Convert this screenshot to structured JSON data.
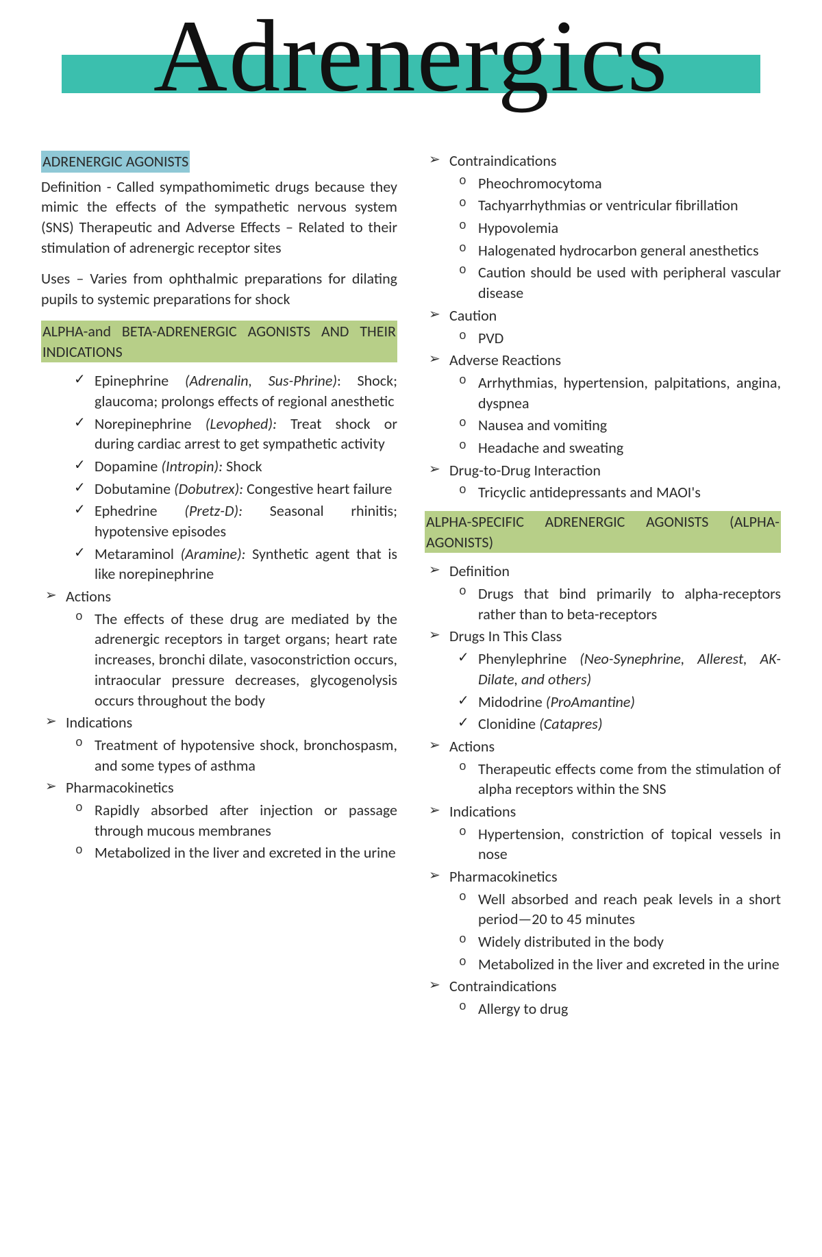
{
  "title": "Adrenergics",
  "colors": {
    "title_bar": "#3bbfae",
    "highlight_blue": "#8fc8d6",
    "highlight_green": "#b7cf88",
    "text": "#2b2b2b",
    "background": "#ffffff"
  },
  "left": {
    "heading_agonists": "ADRENERGIC AGONISTS",
    "definition": "Definition - Called sympathomimetic drugs because they mimic the effects of the sympathetic nervous system (SNS) Therapeutic and Adverse Effects – Related to their stimulation of adrenergic receptor sites",
    "uses": "Uses – Varies from ophthalmic preparations for dilating pupils to systemic preparations for shock",
    "heading_alpha_beta": "ALPHA-and BETA-ADRENERGIC AGONISTS AND THEIR INDICATIONS",
    "drugs": [
      {
        "name": "Epinephrine",
        "brand": "(Adrenalin, Sus-Phrine)",
        "rest": ": Shock; glaucoma; prolongs effects of regional anesthetic"
      },
      {
        "name": "Norepinephrine",
        "brand": "(Levophed):",
        "rest": " Treat shock or during cardiac arrest to get sympathetic activity"
      },
      {
        "name": "Dopamine",
        "brand": "(Intropin):",
        "rest": " Shock"
      },
      {
        "name": "Dobutamine",
        "brand": "(Dobutrex):",
        "rest": " Congestive heart failure"
      },
      {
        "name": "Ephedrine",
        "brand": "(Pretz-D):",
        "rest": " Seasonal rhinitis; hypotensive episodes"
      },
      {
        "name": "Metaraminol",
        "brand": "(Aramine):",
        "rest": " Synthetic agent that is like norepinephrine"
      }
    ],
    "actions_label": "Actions",
    "actions_item": "The effects of these drug are mediated by the adrenergic receptors in target organs; heart rate increases, bronchi dilate, vasoconstriction occurs, intraocular pressure decreases, glycogenolysis occurs throughout the body",
    "indications_label": "Indications",
    "indications_item": "Treatment of hypotensive shock, bronchospasm, and some types of asthma",
    "pharma_label": "Pharmacokinetics",
    "pharma_items": [
      "Rapidly absorbed after injection or passage through mucous membranes",
      "Metabolized in the liver and excreted in the urine"
    ]
  },
  "right": {
    "contra_label": "Contraindications",
    "contra_items": [
      "Pheochromocytoma",
      "Tachyarrhythmias or ventricular fibrillation",
      "Hypovolemia",
      "Halogenated hydrocarbon general anesthetics",
      "Caution should be used with peripheral vascular disease"
    ],
    "caution_label": "Caution",
    "caution_item": "PVD",
    "adverse_label": "Adverse Reactions",
    "adverse_items": [
      "Arrhythmias, hypertension, palpitations, angina, dyspnea",
      "Nausea and vomiting",
      "Headache and sweating"
    ],
    "ddi_label": "Drug-to-Drug Interaction",
    "ddi_item": "Tricyclic antidepressants and MAOI's",
    "heading_alpha_spec": "ALPHA-SPECIFIC ADRENERGIC AGONISTS (ALPHA-AGONISTS)",
    "def_label": "Definition",
    "def_item": "Drugs that bind primarily to alpha-receptors rather than to beta-receptors",
    "drugs_label": "Drugs In This Class",
    "alpha_drugs": [
      {
        "name": "Phenylephrine",
        "brand": "(Neo-Synephrine, Allerest, AK-Dilate, and others)"
      },
      {
        "name": "Midodrine",
        "brand": "(ProAmantine)"
      },
      {
        "name": "Clonidine",
        "brand": "(Catapres)"
      }
    ],
    "actions2_label": "Actions",
    "actions2_item": "Therapeutic effects come from the stimulation of alpha receptors within the SNS",
    "indications2_label": "Indications",
    "indications2_item": "Hypertension, constriction of topical vessels in nose",
    "pharma2_label": "Pharmacokinetics",
    "pharma2_items": [
      "Well absorbed and reach peak levels in a short period—20 to 45 minutes",
      "Widely distributed in the body",
      "Metabolized in the liver and excreted in the urine"
    ],
    "contra2_label": "Contraindications",
    "contra2_item": "Allergy to drug"
  }
}
